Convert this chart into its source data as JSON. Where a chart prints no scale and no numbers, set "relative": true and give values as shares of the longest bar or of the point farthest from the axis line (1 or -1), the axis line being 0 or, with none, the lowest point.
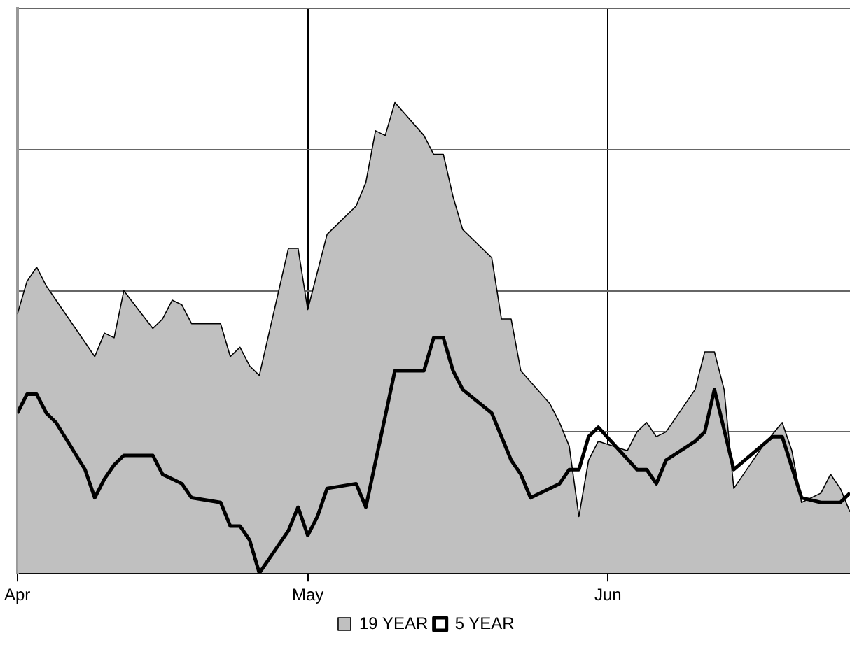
{
  "chart_data": {
    "type": "area",
    "relative": true,
    "grid": true,
    "legend": "bottom",
    "marker": "none",
    "line_style": "solid",
    "xlim": [
      "--04-01",
      "--06-26"
    ],
    "xticks": [
      {
        "value": "--04-01",
        "label": "Apr"
      },
      {
        "value": "--05-01",
        "label": "May"
      },
      {
        "value": "--06-01",
        "label": "Jun"
      }
    ],
    "series": [
      {
        "name": "19 YEAR",
        "color": "#c0c0c0",
        "x": [
          "--04-01",
          "--04-02",
          "--04-03",
          "--04-04",
          "--04-05",
          "--04-09",
          "--04-10",
          "--04-11",
          "--04-12",
          "--04-15",
          "--04-16",
          "--04-17",
          "--04-18",
          "--04-19",
          "--04-22",
          "--04-23",
          "--04-24",
          "--04-25",
          "--04-26",
          "--04-29",
          "--04-30",
          "--05-01",
          "--05-03",
          "--05-06",
          "--05-07",
          "--05-08",
          "--05-09",
          "--05-10",
          "--05-13",
          "--05-14",
          "--05-15",
          "--05-16",
          "--05-17",
          "--05-20",
          "--05-21",
          "--05-22",
          "--05-23",
          "--05-26",
          "--05-27",
          "--05-28",
          "--05-29",
          "--05-30",
          "--05-31",
          "--06-03",
          "--06-04",
          "--06-05",
          "--06-06",
          "--06-07",
          "--06-10",
          "--06-11",
          "--06-12",
          "--06-13",
          "--06-14",
          "--06-17",
          "--06-19",
          "--06-20",
          "--06-21",
          "--06-23",
          "--06-24",
          "--06-25",
          "--06-26"
        ],
        "values": [
          0.55,
          0.62,
          0.65,
          0.61,
          0.58,
          0.46,
          0.51,
          0.5,
          0.6,
          0.52,
          0.54,
          0.58,
          0.57,
          0.53,
          0.53,
          0.46,
          0.48,
          0.44,
          0.42,
          0.69,
          0.69,
          0.56,
          0.72,
          0.78,
          0.83,
          0.94,
          0.93,
          1,
          0.93,
          0.89,
          0.89,
          0.8,
          0.73,
          0.67,
          0.54,
          0.54,
          0.43,
          0.36,
          0.32,
          0.27,
          0.12,
          0.24,
          0.28,
          0.26,
          0.3,
          0.32,
          0.29,
          0.3,
          0.39,
          0.47,
          0.47,
          0.39,
          0.18,
          0.27,
          0.32,
          0.26,
          0.15,
          0.17,
          0.21,
          0.18,
          0.13
        ]
      },
      {
        "name": "5 YEAR",
        "type": "line",
        "color": "#000000",
        "x": [
          "--04-01",
          "--04-02",
          "--04-03",
          "--04-04",
          "--04-05",
          "--04-08",
          "--04-09",
          "--04-10",
          "--04-11",
          "--04-12",
          "--04-15",
          "--04-16",
          "--04-18",
          "--04-19",
          "--04-22",
          "--04-23",
          "--04-24",
          "--04-25",
          "--04-26",
          "--04-29",
          "--04-30",
          "--05-01",
          "--05-02",
          "--05-03",
          "--05-06",
          "--05-07",
          "--05-10",
          "--05-13",
          "--05-14",
          "--05-15",
          "--05-16",
          "--05-17",
          "--05-20",
          "--05-22",
          "--05-23",
          "--05-24",
          "--05-27",
          "--05-28",
          "--05-29",
          "--05-30",
          "--05-31",
          "--06-04",
          "--06-05",
          "--06-06",
          "--06-07",
          "--06-10",
          "--06-11",
          "--06-12",
          "--06-14",
          "--06-18",
          "--06-19",
          "--06-21",
          "--06-23",
          "--06-25",
          "--06-26"
        ],
        "values": [
          0.34,
          0.38,
          0.38,
          0.34,
          0.32,
          0.22,
          0.16,
          0.2,
          0.23,
          0.25,
          0.25,
          0.21,
          0.19,
          0.16,
          0.15,
          0.1,
          0.1,
          0.07,
          0,
          0.09,
          0.14,
          0.08,
          0.12,
          0.18,
          0.19,
          0.14,
          0.43,
          0.43,
          0.5,
          0.5,
          0.43,
          0.39,
          0.34,
          0.24,
          0.21,
          0.16,
          0.19,
          0.22,
          0.22,
          0.29,
          0.31,
          0.22,
          0.22,
          0.19,
          0.24,
          0.28,
          0.3,
          0.39,
          0.22,
          0.29,
          0.29,
          0.16,
          0.15,
          0.15,
          0.17
        ]
      }
    ]
  }
}
